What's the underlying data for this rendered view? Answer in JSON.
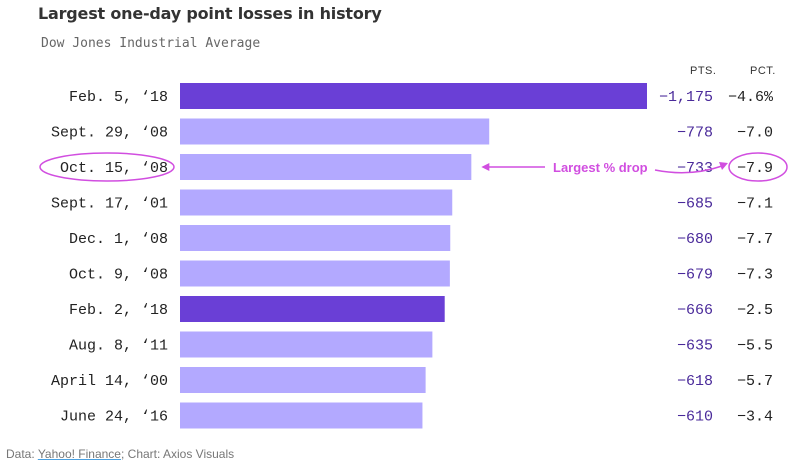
{
  "title": "Largest one-day point losses in history",
  "subtitle": "Dow Jones Industrial Average",
  "columns": {
    "pts": "PTS.",
    "pct": "PCT."
  },
  "footer": {
    "prefix": "Data: ",
    "source": "Yahoo! Finance",
    "suffix": "; Chart: Axios Visuals"
  },
  "annotation": {
    "text": "Largest % drop",
    "target": "Oct. 15, ‘08"
  },
  "colors": {
    "highlight": "#6a3fd6",
    "normal": "#b3a9ff",
    "annotation": "#d14ee0"
  },
  "chart_data": {
    "type": "bar",
    "orientation": "horizontal",
    "categories": [
      "Feb. 5, ‘18",
      "Sept. 29, ‘08",
      "Oct. 15, ‘08",
      "Sept. 17, ‘01",
      "Dec. 1, ‘08",
      "Oct. 9, ‘08",
      "Feb. 2, ‘18",
      "Aug. 8, ‘11",
      "April 14, ‘00",
      "June 24, ‘16"
    ],
    "values": [
      -1175,
      -778,
      -733,
      -685,
      -680,
      -679,
      -666,
      -635,
      -618,
      -610
    ],
    "pts_labels": [
      "−1,175",
      "−778",
      "−733",
      "−685",
      "−680",
      "−679",
      "−666",
      "−635",
      "−618",
      "−610"
    ],
    "pct_labels": [
      "−4.6%",
      "−7.0",
      "−7.9",
      "−7.1",
      "−7.7",
      "−7.3",
      "−2.5",
      "−5.5",
      "−5.7",
      "−3.4"
    ],
    "highlighted": [
      true,
      false,
      false,
      false,
      false,
      false,
      true,
      false,
      false,
      false
    ],
    "title": "Largest one-day point losses in history",
    "subtitle": "Dow Jones Industrial Average"
  }
}
